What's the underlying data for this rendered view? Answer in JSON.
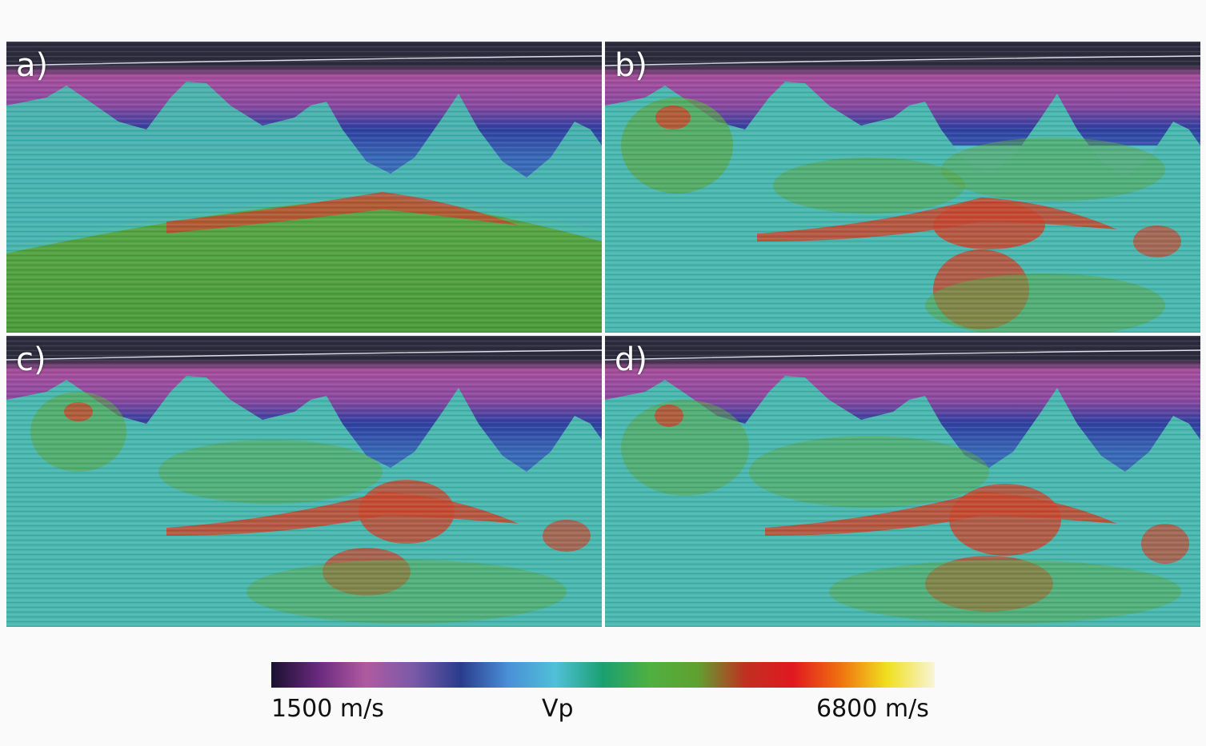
{
  "panels": [
    {
      "id": "a",
      "label": "a)"
    },
    {
      "id": "b",
      "label": "b)"
    },
    {
      "id": "c",
      "label": "c)"
    },
    {
      "id": "d",
      "label": "d)"
    }
  ],
  "colorbar": {
    "min_label": "1500 m/s",
    "title": "Vp",
    "max_label": "6800 m/s",
    "stops": [
      "#1a1030",
      "#6a2a7e",
      "#b05aa0",
      "#7a5aa8",
      "#2a3c8c",
      "#4a90d8",
      "#50c0d8",
      "#1aa070",
      "#50b040",
      "#60a030",
      "#c03020",
      "#e01820",
      "#f07010",
      "#f0e020",
      "#f8f4d8"
    ]
  },
  "colors": {
    "water": "#2c2c3e",
    "shallow": "#b05aa0",
    "mid": "#3040a0",
    "salt": "#48b8b0",
    "sediment": "#50a848",
    "high_velocity": "#c84830"
  }
}
